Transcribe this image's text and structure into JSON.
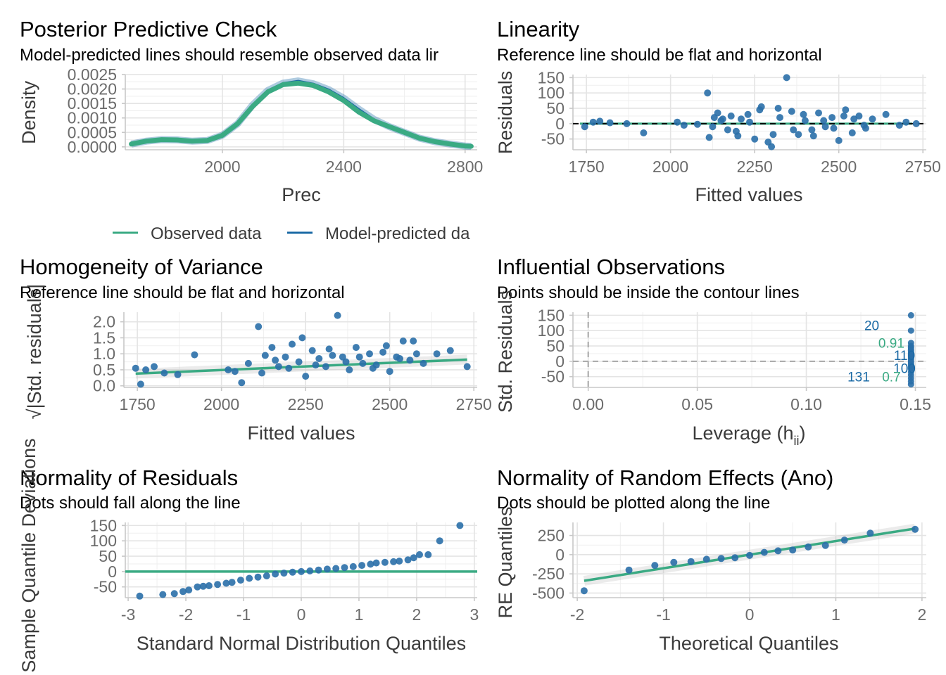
{
  "colors": {
    "observed": "#3aaa83",
    "predicted": "#1b6aa5",
    "point": "#2a6fa8",
    "ref": "#000000"
  },
  "chart_data": [
    {
      "id": "ppc",
      "type": "line",
      "title": "Posterior Predictive Check",
      "subtitle": "Model-predicted lines should resemble observed data lir",
      "xlabel": "Prec",
      "ylabel": "Density",
      "xlim": [
        1680,
        2840
      ],
      "ylim": [
        -0.0001,
        0.0025
      ],
      "xticks": [
        2000,
        2400,
        2800
      ],
      "yticks": [
        0,
        0.0005,
        0.001,
        0.0015,
        0.002,
        0.0025
      ],
      "yticklabels": [
        "0.0000",
        "0.0005",
        "0.0010",
        "0.0015",
        "0.0020",
        "0.0025"
      ],
      "legend": {
        "position": "bottom",
        "entries": [
          "Observed data",
          "Model-predicted da"
        ]
      },
      "series": [
        {
          "name": "Observed data",
          "x": [
            1700,
            1750,
            1800,
            1850,
            1900,
            1950,
            2000,
            2050,
            2100,
            2150,
            2200,
            2250,
            2300,
            2350,
            2400,
            2450,
            2500,
            2550,
            2600,
            2650,
            2700,
            2750,
            2800,
            2820
          ],
          "y": [
            0.0001,
            0.0002,
            0.00025,
            0.00024,
            0.0002,
            0.00022,
            0.0004,
            0.0008,
            0.0014,
            0.0019,
            0.00215,
            0.0022,
            0.00212,
            0.0019,
            0.0016,
            0.0012,
            0.0009,
            0.0007,
            0.0005,
            0.0003,
            0.00018,
            0.0001,
            3e-05,
            2e-05
          ]
        },
        {
          "name": "Model-predicted da",
          "x": [
            1700,
            1750,
            1800,
            1850,
            1900,
            1950,
            2000,
            2050,
            2100,
            2150,
            2200,
            2250,
            2300,
            2350,
            2400,
            2450,
            2500,
            2550,
            2600,
            2650,
            2700,
            2750,
            2800,
            2820
          ],
          "y": [
            0.0001,
            0.0002,
            0.00025,
            0.00024,
            0.0002,
            0.00022,
            0.0004,
            0.0008,
            0.00145,
            0.00195,
            0.0022,
            0.00228,
            0.00218,
            0.00198,
            0.00168,
            0.0013,
            0.00095,
            0.0007,
            0.0005,
            0.0003,
            0.00018,
            0.0001,
            3e-05,
            2e-05
          ]
        }
      ]
    },
    {
      "id": "lin",
      "type": "scatter",
      "title": "Linearity",
      "subtitle": "Reference line should be flat and horizontal",
      "xlabel": "Fitted values",
      "ylabel": "Residuals",
      "xlim": [
        1710,
        2760
      ],
      "ylim": [
        -85,
        160
      ],
      "xticks": [
        1750,
        2000,
        2250,
        2500,
        2750
      ],
      "yticks": [
        -50,
        0,
        50,
        100,
        150
      ],
      "reference_line": {
        "y": 0
      },
      "x": [
        1745,
        1770,
        1790,
        1820,
        1870,
        1920,
        2020,
        2040,
        2080,
        2110,
        2115,
        2130,
        2140,
        2150,
        2170,
        2180,
        2200,
        2210,
        2230,
        2250,
        2270,
        2290,
        2300,
        2320,
        2345,
        2360,
        2380,
        2400,
        2420,
        2440,
        2460,
        2480,
        2500,
        2520,
        2540,
        2560,
        2580,
        2600,
        2640,
        2680,
        2700,
        2730,
        2125,
        2155,
        2195,
        2235,
        2265,
        2305,
        2325,
        2365,
        2395,
        2425,
        2455,
        2485,
        2515,
        2545,
        2575
      ],
      "y": [
        -10,
        5,
        8,
        3,
        0,
        -30,
        5,
        -5,
        -2,
        100,
        -45,
        20,
        35,
        10,
        -20,
        25,
        -40,
        15,
        30,
        -50,
        55,
        -60,
        -75,
        50,
        150,
        40,
        -35,
        10,
        -20,
        35,
        -10,
        20,
        -55,
        45,
        -30,
        25,
        -15,
        15,
        30,
        -5,
        5,
        0,
        -10,
        15,
        -25,
        5,
        45,
        -35,
        20,
        -20,
        30,
        -40,
        10,
        -15,
        25,
        15,
        -5
      ]
    },
    {
      "id": "hov",
      "type": "scatter",
      "title": "Homogeneity of Variance",
      "subtitle": "Reference line should be flat and horizontal",
      "xlabel": "Fitted values",
      "ylabel": "√|Std. residuals|",
      "xlim": [
        1710,
        2760
      ],
      "ylim": [
        -0.05,
        2.3
      ],
      "xticks": [
        1750,
        2000,
        2250,
        2500,
        2750
      ],
      "yticks": [
        0,
        0.5,
        1,
        1.5,
        2
      ],
      "yticklabels": [
        "0.0",
        "0.5",
        "1.0",
        "1.5",
        "2.0"
      ],
      "trend": {
        "x": [
          1745,
          2730
        ],
        "y": [
          0.38,
          0.82
        ]
      },
      "x": [
        1745,
        1760,
        1775,
        1800,
        1830,
        1870,
        1920,
        2020,
        2040,
        2060,
        2080,
        2110,
        2130,
        2150,
        2170,
        2190,
        2210,
        2230,
        2250,
        2270,
        2290,
        2310,
        2330,
        2345,
        2360,
        2380,
        2400,
        2420,
        2440,
        2460,
        2480,
        2500,
        2520,
        2540,
        2560,
        2580,
        2600,
        2640,
        2680,
        2730,
        2120,
        2160,
        2200,
        2240,
        2280,
        2320,
        2370,
        2410,
        2450,
        2490,
        2530,
        2570
      ],
      "y": [
        0.55,
        0.05,
        0.5,
        0.6,
        0.4,
        0.35,
        0.97,
        0.5,
        0.45,
        0.1,
        0.7,
        1.85,
        0.95,
        1.2,
        0.6,
        0.9,
        1.3,
        0.75,
        0.3,
        1.1,
        0.85,
        0.6,
        0.95,
        2.2,
        0.9,
        0.5,
        1.2,
        0.7,
        1.0,
        0.65,
        1.05,
        0.45,
        0.9,
        1.4,
        0.8,
        1.0,
        0.7,
        1.0,
        1.1,
        0.6,
        0.4,
        0.8,
        0.55,
        1.5,
        0.65,
        1.15,
        0.75,
        0.9,
        0.55,
        1.25,
        0.85,
        1.4
      ]
    },
    {
      "id": "inf",
      "type": "scatter",
      "title": "Influential Observations",
      "subtitle": "Points should be inside the contour lines",
      "xlabel": "Leverage (hii)",
      "ylabel": "Std. Residuals",
      "xlim": [
        -0.007,
        0.155
      ],
      "ylim": [
        -85,
        160
      ],
      "xticks": [
        0,
        0.05,
        0.1,
        0.15
      ],
      "xticklabels": [
        "0.00",
        "0.05",
        "0.10",
        "0.15"
      ],
      "yticks": [
        -50,
        0,
        50,
        100,
        150
      ],
      "xlabel_parts": [
        "Leverage (h",
        "ii",
        ")"
      ],
      "x": [
        0.148,
        0.148,
        0.148,
        0.148,
        0.148,
        0.148,
        0.148,
        0.148,
        0.148,
        0.148,
        0.148,
        0.148,
        0.148,
        0.148,
        0.148,
        0.148,
        0.148,
        0.148,
        0.148,
        0.148,
        0.148,
        0.148,
        0.148,
        0.148
      ],
      "y": [
        150,
        100,
        60,
        50,
        45,
        40,
        35,
        30,
        25,
        20,
        15,
        10,
        5,
        0,
        -5,
        -10,
        -15,
        -20,
        -25,
        -35,
        -45,
        -55,
        -65,
        -75
      ],
      "labels": [
        {
          "text": "20",
          "x": 0.13,
          "y": 118,
          "color": "#1b6aa5"
        },
        {
          "text": "0.91",
          "x": 0.139,
          "y": 60,
          "color": "#3aaa83"
        },
        {
          "text": "110",
          "x": 0.145,
          "y": 20,
          "color": "#1b6aa5"
        },
        {
          "text": "100",
          "x": 0.145,
          "y": -22,
          "color": "#1b6aa5"
        },
        {
          "text": "131",
          "x": 0.124,
          "y": -50,
          "color": "#1b6aa5"
        },
        {
          "text": "0.7",
          "x": 0.139,
          "y": -50,
          "color": "#3aaa83"
        }
      ]
    },
    {
      "id": "nor",
      "type": "scatter",
      "title": "Normality of Residuals",
      "subtitle": "Dots should fall along the line",
      "xlabel": "Standard Normal Distribution Quantiles",
      "ylabel": "Sample Quantile Deviations",
      "xlim": [
        -3.05,
        3.05
      ],
      "ylim": [
        -85,
        160
      ],
      "xticks": [
        -3,
        -2,
        -1,
        0,
        1,
        2,
        3
      ],
      "yticks": [
        -50,
        0,
        50,
        100,
        150
      ],
      "reference_line": {
        "y": 0
      },
      "x": [
        -2.8,
        -2.4,
        -2.2,
        -2.05,
        -1.95,
        -1.8,
        -1.7,
        -1.6,
        -1.45,
        -1.3,
        -1.2,
        -1.05,
        -0.9,
        -0.75,
        -0.6,
        -0.45,
        -0.3,
        -0.15,
        0,
        0.15,
        0.3,
        0.45,
        0.6,
        0.75,
        0.9,
        1.05,
        1.2,
        1.3,
        1.45,
        1.6,
        1.7,
        1.85,
        1.95,
        2.05,
        2.2,
        2.4,
        2.75
      ],
      "y": [
        -80,
        -75,
        -72,
        -65,
        -60,
        -50,
        -48,
        -46,
        -42,
        -38,
        -35,
        -28,
        -22,
        -18,
        -14,
        -8,
        -5,
        -2,
        0,
        2,
        5,
        8,
        10,
        13,
        16,
        20,
        24,
        28,
        30,
        32,
        34,
        38,
        45,
        55,
        55,
        100,
        150
      ]
    },
    {
      "id": "re",
      "type": "scatter",
      "title": "Normality of Random Effects (Ano)",
      "subtitle": "Dots should be plotted along the line",
      "xlabel": "Theoretical Quantiles",
      "ylabel": "RE Quantiles",
      "xlim": [
        -2.05,
        2.05
      ],
      "ylim": [
        -560,
        420
      ],
      "xticks": [
        -2,
        -1,
        0,
        1,
        2
      ],
      "yticks": [
        -500,
        -250,
        0,
        250
      ],
      "trend": {
        "x": [
          -1.92,
          1.92
        ],
        "y": [
          -340,
          340
        ]
      },
      "x": [
        -1.92,
        -1.4,
        -1.1,
        -0.88,
        -0.68,
        -0.5,
        -0.33,
        -0.17,
        0,
        0.17,
        0.33,
        0.5,
        0.68,
        0.88,
        1.1,
        1.4,
        1.92
      ],
      "y": [
        -470,
        -200,
        -140,
        -100,
        -90,
        -60,
        -50,
        -40,
        -10,
        30,
        50,
        60,
        100,
        120,
        190,
        280,
        330
      ]
    }
  ]
}
